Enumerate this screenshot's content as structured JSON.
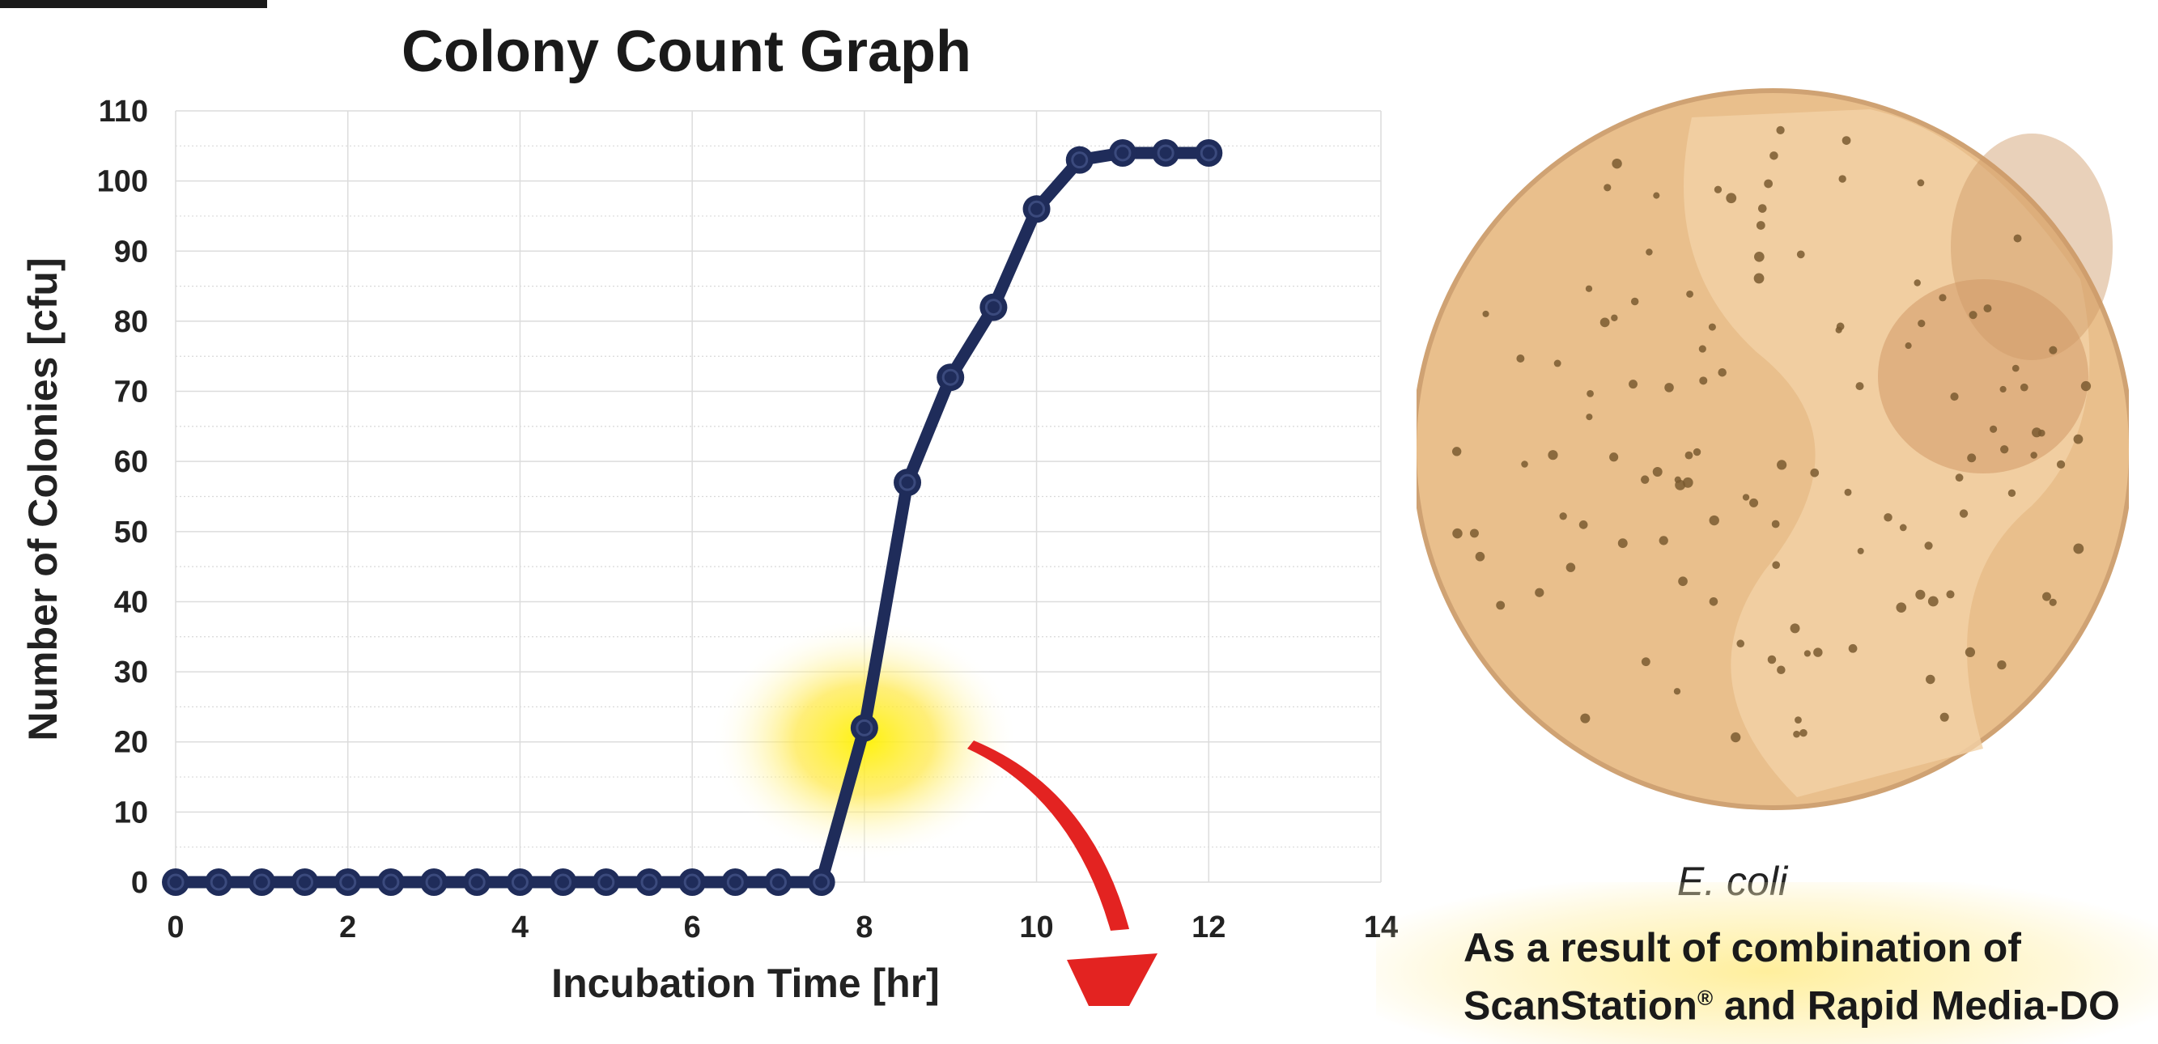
{
  "chart_data": {
    "type": "line",
    "title": "Colony Count Graph",
    "xlabel": "Incubation Time [hr]",
    "ylabel": "Number of Colonies [cfu]",
    "xlim": [
      0,
      14
    ],
    "ylim": [
      0,
      110
    ],
    "xticks": [
      0,
      2,
      4,
      6,
      8,
      10,
      12,
      14
    ],
    "yticks": [
      0,
      10,
      20,
      30,
      40,
      50,
      60,
      70,
      80,
      90,
      100,
      110
    ],
    "grid": true,
    "legend": "none",
    "series": [
      {
        "color": "#1f2c5a",
        "x": [
          0,
          0.5,
          1,
          1.5,
          2,
          2.5,
          3,
          3.5,
          4,
          4.5,
          5,
          5.5,
          6,
          6.5,
          7,
          7.5,
          8,
          8.5,
          9,
          9.5,
          10,
          10.5,
          11,
          11.5,
          12
        ],
        "y": [
          0,
          0,
          0,
          0,
          0,
          0,
          0,
          0,
          0,
          0,
          0,
          0,
          0,
          0,
          0,
          0,
          22,
          57,
          72,
          82,
          96,
          103,
          104,
          104,
          104
        ]
      }
    ],
    "annotations": [
      {
        "kind": "highlight-glow",
        "x": 8,
        "y": 22,
        "color": "#ffe600"
      },
      {
        "kind": "curved-arrow",
        "color": "#e32321"
      }
    ]
  },
  "photo": {
    "caption": "E. coli",
    "plate_color": "#e9bf8c",
    "colony_color": "#7a5a30"
  },
  "result": {
    "line1": "As a result of combination of",
    "line2_a": "ScanStation",
    "line2_mark": "®",
    "line2_b": " and Rapid Media-DO"
  }
}
